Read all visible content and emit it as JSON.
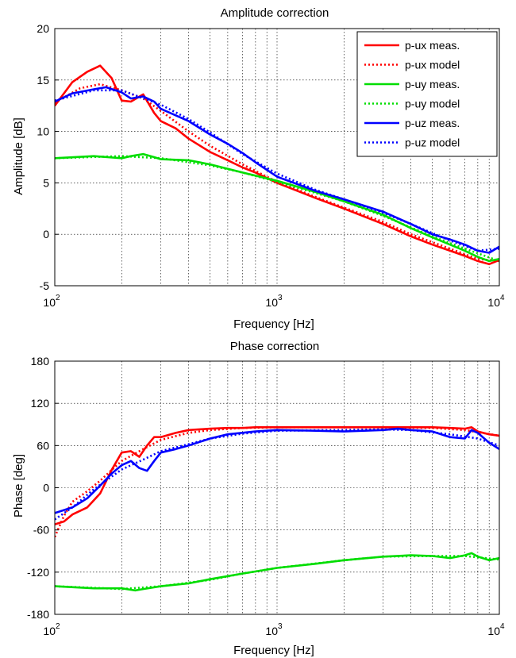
{
  "chart_data": [
    {
      "type": "line",
      "title": "Amplitude correction",
      "xlabel": "Frequency [Hz]",
      "ylabel": "Amplitude [dB]",
      "xscale": "log",
      "xlim": [
        100,
        10000
      ],
      "ylim": [
        -5,
        20
      ],
      "yticks": [
        "-5",
        "0",
        "5",
        "10",
        "15",
        "20"
      ],
      "xticks": [
        {
          "base": "10",
          "exp": "2"
        },
        {
          "base": "10",
          "exp": "3"
        },
        {
          "base": "10",
          "exp": "4"
        }
      ],
      "grid": true,
      "legend_position": "top-right",
      "series": [
        {
          "name": "p-ux meas.",
          "color": "#ff0000",
          "style": "solid",
          "x": [
            100,
            120,
            140,
            160,
            180,
            200,
            220,
            250,
            280,
            300,
            350,
            400,
            500,
            600,
            700,
            800,
            1000,
            1500,
            2000,
            3000,
            4000,
            5000,
            6000,
            7000,
            8000,
            9000,
            10000
          ],
          "y": [
            12.5,
            14.8,
            15.8,
            16.4,
            15.2,
            13.0,
            12.9,
            13.6,
            11.8,
            11.0,
            10.3,
            9.3,
            8.0,
            7.2,
            6.5,
            6.0,
            5.0,
            3.5,
            2.5,
            1.0,
            -0.2,
            -1.0,
            -1.6,
            -2.1,
            -2.6,
            -2.9,
            -2.5
          ]
        },
        {
          "name": "p-ux model",
          "color": "#ff0000",
          "style": "dotted",
          "x": [
            100,
            130,
            160,
            200,
            250,
            300,
            400,
            500,
            700,
            1000,
            1500,
            2000,
            3000,
            4000,
            6000,
            8000,
            10000
          ],
          "y": [
            12.8,
            14.2,
            14.6,
            14.0,
            13.2,
            12.0,
            10.0,
            8.6,
            6.8,
            5.1,
            3.6,
            2.6,
            1.2,
            0.0,
            -1.4,
            -2.4,
            -2.6
          ]
        },
        {
          "name": "p-uy meas.",
          "color": "#00dd00",
          "style": "solid",
          "x": [
            100,
            150,
            200,
            220,
            250,
            280,
            300,
            400,
            500,
            700,
            1000,
            1500,
            2000,
            3000,
            4000,
            5000,
            6000,
            7000,
            8000,
            9000,
            10000
          ],
          "y": [
            7.4,
            7.6,
            7.4,
            7.6,
            7.8,
            7.5,
            7.3,
            7.2,
            6.8,
            6.0,
            5.2,
            4.1,
            3.2,
            1.9,
            0.6,
            -0.3,
            -1.0,
            -1.6,
            -2.2,
            -2.6,
            -2.4
          ]
        },
        {
          "name": "p-uy model",
          "color": "#00dd00",
          "style": "dotted",
          "x": [
            100,
            200,
            300,
            500,
            700,
            1000,
            1500,
            2000,
            3000,
            5000,
            7000,
            10000
          ],
          "y": [
            7.4,
            7.6,
            7.4,
            6.7,
            6.0,
            5.1,
            4.0,
            3.2,
            1.8,
            -0.2,
            -1.4,
            -2.6
          ]
        },
        {
          "name": "p-uz meas.",
          "color": "#0000ff",
          "style": "solid",
          "x": [
            100,
            120,
            150,
            170,
            200,
            220,
            250,
            280,
            300,
            400,
            500,
            600,
            700,
            800,
            1000,
            1500,
            2000,
            3000,
            4000,
            5000,
            6000,
            7000,
            8000,
            9000,
            10000
          ],
          "y": [
            12.9,
            13.7,
            14.1,
            14.3,
            13.8,
            13.2,
            13.4,
            12.9,
            12.2,
            11.0,
            9.7,
            8.8,
            7.9,
            7.0,
            5.6,
            4.2,
            3.4,
            2.2,
            1.0,
            0.0,
            -0.5,
            -1.0,
            -1.6,
            -1.8,
            -1.2
          ]
        },
        {
          "name": "p-uz model",
          "color": "#0000ff",
          "style": "dotted",
          "x": [
            100,
            150,
            200,
            300,
            400,
            500,
            700,
            1000,
            1500,
            2000,
            3000,
            4000,
            6000,
            8000,
            10000
          ],
          "y": [
            13.0,
            14.0,
            14.0,
            12.6,
            11.2,
            9.9,
            7.8,
            5.9,
            4.3,
            3.4,
            2.1,
            1.0,
            -0.6,
            -1.6,
            -1.4
          ]
        }
      ]
    },
    {
      "type": "line",
      "title": "Phase correction",
      "xlabel": "Frequency [Hz]",
      "ylabel": "Phase [deg]",
      "xscale": "log",
      "xlim": [
        100,
        10000
      ],
      "ylim": [
        -180,
        180
      ],
      "yticks": [
        "-180",
        "-120",
        "-60",
        "0",
        "60",
        "120",
        "180"
      ],
      "xticks": [
        {
          "base": "10",
          "exp": "2"
        },
        {
          "base": "10",
          "exp": "3"
        },
        {
          "base": "10",
          "exp": "4"
        }
      ],
      "grid": true,
      "series": [
        {
          "name": "p-ux meas.",
          "color": "#ff0000",
          "style": "solid",
          "x": [
            100,
            110,
            120,
            140,
            160,
            180,
            200,
            220,
            240,
            260,
            280,
            300,
            350,
            400,
            500,
            600,
            700,
            800,
            1000,
            1500,
            2000,
            3000,
            4000,
            5000,
            6000,
            7000,
            7500,
            8000,
            9000,
            10000
          ],
          "y": [
            -52,
            -48,
            -38,
            -28,
            -8,
            25,
            50,
            52,
            44,
            60,
            72,
            72,
            78,
            82,
            84,
            85,
            85,
            86,
            86,
            86,
            86,
            86,
            86,
            86,
            85,
            84,
            86,
            80,
            76,
            74
          ]
        },
        {
          "name": "p-ux model",
          "color": "#ff0000",
          "style": "dotted",
          "x": [
            100,
            110,
            120,
            140,
            160,
            180,
            200,
            250,
            300,
            400,
            500,
            700,
            1000,
            2000,
            3000,
            5000,
            7000,
            10000
          ],
          "y": [
            -70,
            -40,
            -20,
            -5,
            10,
            25,
            38,
            55,
            68,
            78,
            82,
            85,
            86,
            86,
            86,
            85,
            82,
            74
          ]
        },
        {
          "name": "p-uz meas.",
          "color": "#0000ff",
          "style": "solid",
          "x": [
            100,
            120,
            140,
            160,
            180,
            200,
            220,
            240,
            260,
            280,
            300,
            350,
            400,
            500,
            600,
            800,
            1000,
            1500,
            2000,
            3000,
            3500,
            4000,
            5000,
            6000,
            7000,
            7500,
            8000,
            9000,
            10000
          ],
          "y": [
            -36,
            -28,
            -15,
            3,
            20,
            32,
            38,
            28,
            24,
            38,
            50,
            55,
            60,
            70,
            76,
            80,
            82,
            81,
            80,
            82,
            84,
            82,
            80,
            72,
            70,
            82,
            78,
            64,
            55
          ]
        },
        {
          "name": "p-uz model",
          "color": "#0000ff",
          "style": "dotted",
          "x": [
            100,
            120,
            150,
            200,
            250,
            300,
            400,
            500,
            700,
            1000,
            2000,
            3000,
            4000,
            6000,
            8000,
            10000
          ],
          "y": [
            -45,
            -28,
            -2,
            26,
            40,
            52,
            62,
            70,
            77,
            81,
            82,
            83,
            82,
            76,
            70,
            60
          ]
        },
        {
          "name": "p-uy meas.",
          "color": "#00dd00",
          "style": "solid",
          "x": [
            100,
            150,
            200,
            230,
            250,
            300,
            400,
            500,
            700,
            1000,
            1500,
            2000,
            3000,
            4000,
            5000,
            6000,
            7000,
            7500,
            8000,
            9000,
            10000
          ],
          "y": [
            -140,
            -143,
            -143,
            -146,
            -144,
            -140,
            -136,
            -130,
            -122,
            -114,
            -108,
            -103,
            -98,
            -96,
            -97,
            -100,
            -96,
            -93,
            -98,
            -103,
            -100
          ]
        },
        {
          "name": "p-uy model",
          "color": "#00dd00",
          "style": "dotted",
          "x": [
            100,
            200,
            300,
            500,
            700,
            1000,
            2000,
            3000,
            5000,
            7000,
            10000
          ],
          "y": [
            -140,
            -144,
            -140,
            -131,
            -122,
            -114,
            -103,
            -98,
            -97,
            -97,
            -102
          ]
        }
      ]
    }
  ]
}
